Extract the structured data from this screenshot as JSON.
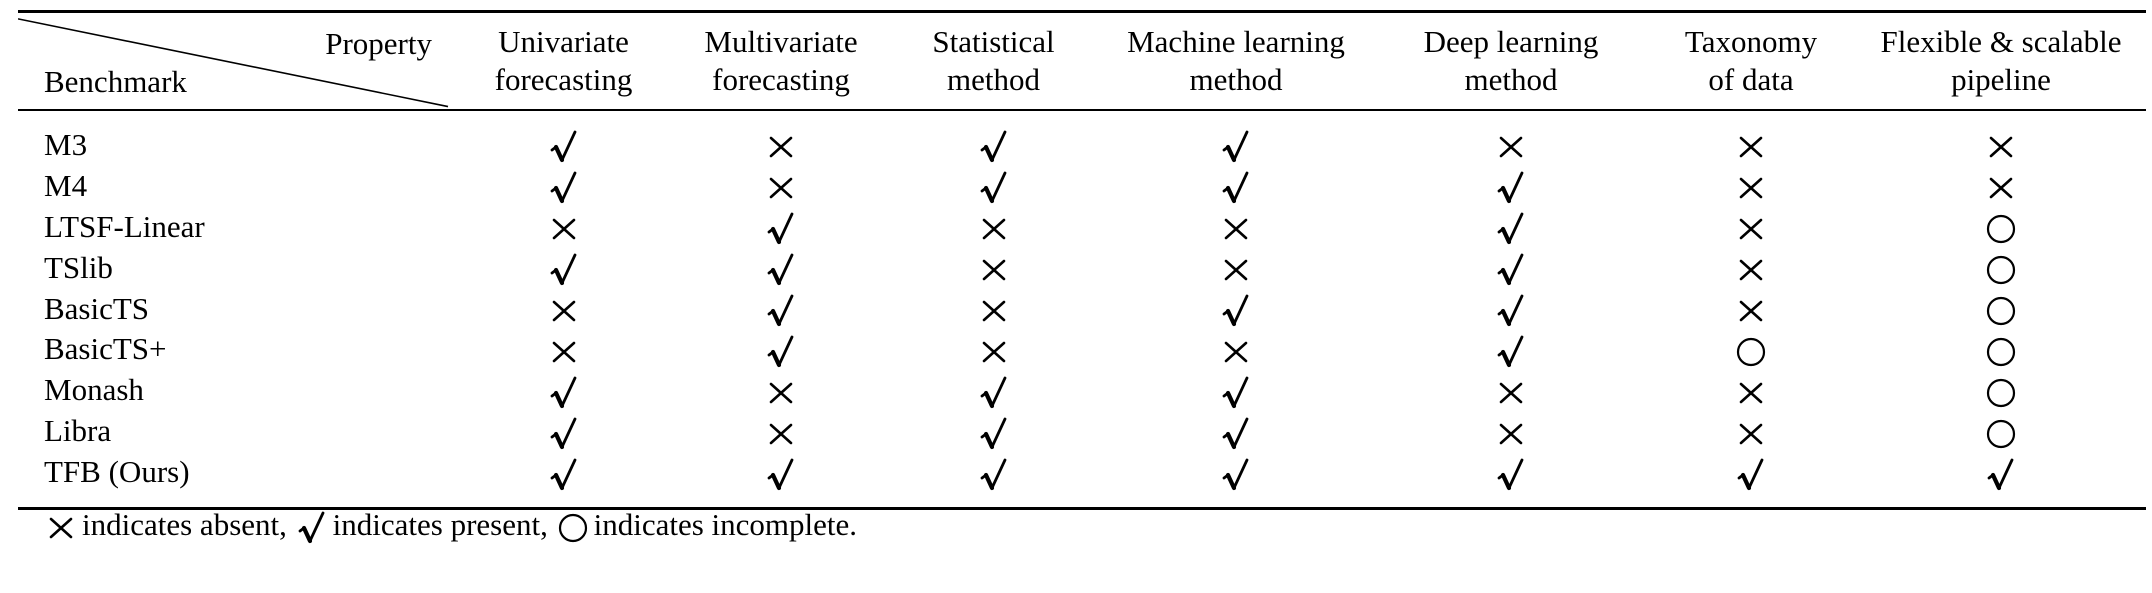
{
  "table": {
    "corner": {
      "column_header": "Property",
      "row_header": "Benchmark"
    },
    "columns": [
      [
        "Univariate",
        "forecasting"
      ],
      [
        "Multivariate",
        "forecasting"
      ],
      [
        "Statistical",
        "method"
      ],
      [
        "Machine learning",
        "method"
      ],
      [
        "Deep learning",
        "method"
      ],
      [
        "Taxonomy",
        "of data"
      ],
      [
        "Flexible & scalable",
        "pipeline"
      ]
    ],
    "rows": [
      {
        "name": "M3",
        "values": [
          "present",
          "absent",
          "present",
          "present",
          "absent",
          "absent",
          "absent"
        ]
      },
      {
        "name": "M4",
        "values": [
          "present",
          "absent",
          "present",
          "present",
          "present",
          "absent",
          "absent"
        ]
      },
      {
        "name": "LTSF-Linear",
        "values": [
          "absent",
          "present",
          "absent",
          "absent",
          "present",
          "absent",
          "incomplete"
        ]
      },
      {
        "name": "TSlib",
        "values": [
          "present",
          "present",
          "absent",
          "absent",
          "present",
          "absent",
          "incomplete"
        ]
      },
      {
        "name": "BasicTS",
        "values": [
          "absent",
          "present",
          "absent",
          "present",
          "present",
          "absent",
          "incomplete"
        ]
      },
      {
        "name": "BasicTS+",
        "values": [
          "absent",
          "present",
          "absent",
          "absent",
          "present",
          "incomplete",
          "incomplete"
        ]
      },
      {
        "name": "Monash",
        "values": [
          "present",
          "absent",
          "present",
          "present",
          "absent",
          "absent",
          "incomplete"
        ]
      },
      {
        "name": "Libra",
        "values": [
          "present",
          "absent",
          "present",
          "present",
          "absent",
          "absent",
          "incomplete"
        ]
      },
      {
        "name": "TFB (Ours)",
        "values": [
          "present",
          "present",
          "present",
          "present",
          "present",
          "present",
          "present"
        ]
      }
    ]
  },
  "legend": {
    "absent_text": "indicates absent,",
    "present_text": "indicates present,",
    "incomplete_text": "indicates incomplete."
  },
  "icons": {
    "absent": "cross-icon",
    "present": "check-icon",
    "incomplete": "circle-icon"
  }
}
